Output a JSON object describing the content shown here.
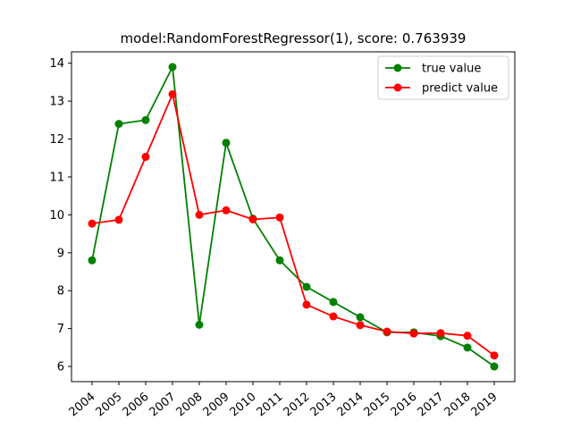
{
  "chart_data": {
    "type": "line",
    "title": "model:RandomForestRegressor(1), score: 0.763939",
    "xlabel": "",
    "ylabel": "",
    "categories": [
      "2004",
      "2005",
      "2006",
      "2007",
      "2008",
      "2009",
      "2010",
      "2011",
      "2012",
      "2013",
      "2014",
      "2015",
      "2016",
      "2017",
      "2018",
      "2019"
    ],
    "yticks": [
      6,
      7,
      8,
      9,
      10,
      11,
      12,
      13,
      14
    ],
    "ylim": [
      5.6,
      14.3
    ],
    "grid": false,
    "legend_position": "top-right",
    "series": [
      {
        "name": "true value",
        "color": "#008000",
        "values": [
          8.8,
          12.4,
          12.5,
          13.9,
          7.1,
          11.9,
          9.9,
          8.8,
          8.1,
          7.7,
          7.3,
          6.9,
          6.9,
          6.8,
          6.5,
          6.0
        ]
      },
      {
        "name": "predict value",
        "color": "#ff0000",
        "values": [
          9.77,
          9.87,
          11.53,
          13.18,
          10.0,
          10.12,
          9.88,
          9.93,
          7.63,
          7.32,
          7.09,
          6.92,
          6.87,
          6.88,
          6.81,
          6.29
        ]
      }
    ]
  }
}
